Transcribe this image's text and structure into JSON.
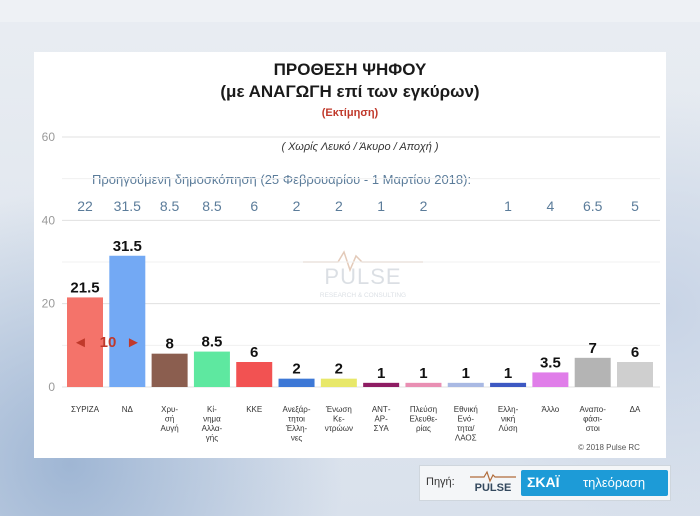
{
  "titles": {
    "main": "ΠΡΟΘΕΣΗ ΨΗΦΟΥ",
    "sub": "(με ΑΝΑΓΩΓΗ επί των εγκύρων)",
    "estimate": "(Εκτίμηση)",
    "note": "( Χωρίς Λευκό / Άκυρο / Αποχή )"
  },
  "previous_poll": {
    "title": "Προηγούμενη δημοσκόπηση (25 Φεβρουαρίου - 1 Μαρτίου 2018):",
    "values": [
      "22",
      "31.5",
      "8.5",
      "8.5",
      "6",
      "2",
      "2",
      "1",
      "2",
      "",
      "1",
      "4",
      "6.5",
      "5"
    ]
  },
  "difference_annotation": {
    "text": "10",
    "left_arrow": "◄",
    "right_arrow": "►"
  },
  "watermark": {
    "brand": "PULSE",
    "tagline": "RESEARCH & CONSULTING"
  },
  "copyright": "© 2018 Pulse RC",
  "source": {
    "label": "Πηγή:",
    "pollster": "PULSE",
    "channel": "ΣΚΑΪ",
    "channel_suffix": "τηλεόραση"
  },
  "chart_data": {
    "type": "bar",
    "ylim": [
      0,
      60
    ],
    "yticks": [
      0,
      20,
      40,
      60
    ],
    "grid": true,
    "categories": [
      [
        "ΣΥΡΙΖΑ"
      ],
      [
        "ΝΔ"
      ],
      [
        "Χρυ-",
        "σή",
        "Αυγή"
      ],
      [
        "Κί-",
        "νημα",
        "Αλλα-",
        "γής"
      ],
      [
        "ΚΚΕ"
      ],
      [
        "Ανεξάρ-",
        "τητοι",
        "Έλλη-",
        "νες"
      ],
      [
        "Ένωση",
        "Κε-",
        "ντρώων"
      ],
      [
        "ΑΝΤ-",
        "ΑΡ-",
        "ΣΥΑ"
      ],
      [
        "Πλεύση",
        "Ελευθε-",
        "ρίας"
      ],
      [
        "Εθνική",
        "Ενό-",
        "τητα/",
        "ΛΑΟΣ"
      ],
      [
        "Ελλη-",
        "νική",
        "Λύση"
      ],
      [
        "Άλλο"
      ],
      [
        "Αναπο-",
        "φάσι-",
        "στοι"
      ],
      [
        "ΔΑ"
      ]
    ],
    "values": [
      21.5,
      31.5,
      8,
      8.5,
      6,
      2,
      2,
      1,
      1,
      1,
      1,
      3.5,
      7,
      6
    ],
    "value_labels": [
      "21.5",
      "31.5",
      "8",
      "8.5",
      "6",
      "2",
      "2",
      "1",
      "1",
      "1",
      "1",
      "3.5",
      "7",
      "6"
    ],
    "colors": [
      "#f4736a",
      "#73a9f4",
      "#8b5e4f",
      "#5ee8a0",
      "#f25252",
      "#3d78d6",
      "#e8e86a",
      "#8e1d63",
      "#e98fb3",
      "#a9b9e3",
      "#3d58c2",
      "#e07ee9",
      "#b4b4b4",
      "#cfcfcf"
    ]
  }
}
